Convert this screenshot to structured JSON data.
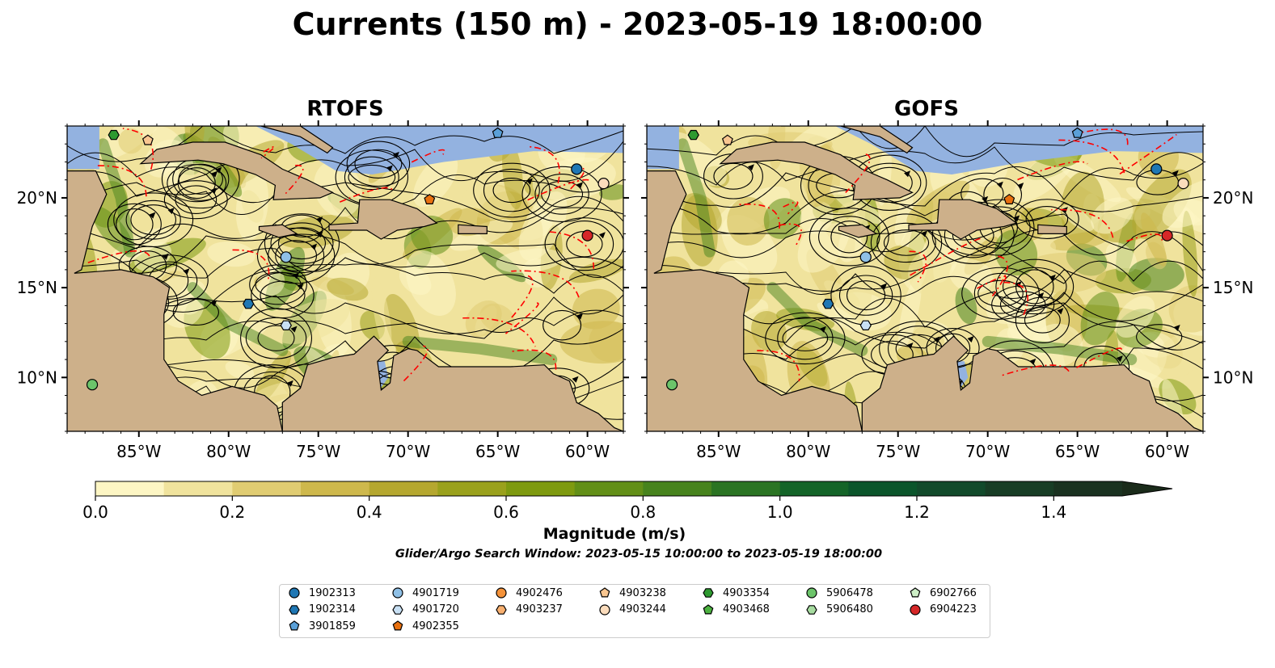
{
  "title": "Currents (150 m) - 2023-05-19 18:00:00",
  "panels": [
    {
      "title": "RTOFS"
    },
    {
      "title": "GOFS"
    }
  ],
  "map": {
    "lon_range": [
      -89,
      -58
    ],
    "lat_range": [
      7,
      24
    ],
    "lon_ticks": [
      "85°W",
      "80°W",
      "75°W",
      "70°W",
      "65°W",
      "60°W"
    ],
    "lat_ticks": [
      "20°N",
      "15°N",
      "10°N"
    ],
    "colors": {
      "land": "#cdb08a",
      "water": "#93b2e0",
      "eez_line": "#ff0000",
      "streamline": "#000000"
    }
  },
  "colorbar": {
    "label": "Magnitude (m/s)",
    "range": [
      0.0,
      1.5
    ],
    "extend": "max",
    "ticks": [
      "0.0",
      "0.2",
      "0.4",
      "0.6",
      "0.8",
      "1.0",
      "1.2",
      "1.4"
    ],
    "bin_colors": [
      "#fdf6c4",
      "#f0e39d",
      "#e0cc72",
      "#ceb84c",
      "#b5a72f",
      "#9aa11c",
      "#7e9a10",
      "#628f17",
      "#47831d",
      "#2b7423",
      "#146428",
      "#0b552b",
      "#124a2b",
      "#183d25",
      "#1a3220"
    ]
  },
  "search_window": "Glider/Argo Search Window: 2023-05-15 10:00:00 to 2023-05-19 18:00:00",
  "legend": [
    {
      "id": "1902313",
      "marker": "circle",
      "color": "#1f77b4"
    },
    {
      "id": "1902314",
      "marker": "hexagon",
      "color": "#1f77b4"
    },
    {
      "id": "3901859",
      "marker": "pentagon",
      "color": "#5aa0d8"
    },
    {
      "id": "4901719",
      "marker": "circle",
      "color": "#8fc0e6"
    },
    {
      "id": "4901720",
      "marker": "hexagon",
      "color": "#c8e0f4"
    },
    {
      "id": "4902355",
      "marker": "pentagon",
      "color": "#e8700f"
    },
    {
      "id": "4902476",
      "marker": "circle",
      "color": "#f4923a"
    },
    {
      "id": "4903237",
      "marker": "hexagon",
      "color": "#f8b070"
    },
    {
      "id": "4903238",
      "marker": "pentagon",
      "color": "#f9c690"
    },
    {
      "id": "4903244",
      "marker": "circle",
      "color": "#fbdcbc"
    },
    {
      "id": "4903354",
      "marker": "hexagon",
      "color": "#2e9a30"
    },
    {
      "id": "4903468",
      "marker": "pentagon",
      "color": "#4cb240"
    },
    {
      "id": "5906478",
      "marker": "circle",
      "color": "#6cc46a"
    },
    {
      "id": "5906480",
      "marker": "hexagon",
      "color": "#a7dca0"
    },
    {
      "id": "6902766",
      "marker": "pentagon",
      "color": "#cdeec6"
    },
    {
      "id": "6904223",
      "marker": "circle",
      "color": "#d62728"
    }
  ],
  "platform_positions": [
    {
      "id": "1902313",
      "lon": -60.6,
      "lat": 21.6
    },
    {
      "id": "3901859",
      "lon": -65.0,
      "lat": 23.6
    },
    {
      "id": "4901719",
      "lon": -76.8,
      "lat": 16.7
    },
    {
      "id": "1902314",
      "lon": -78.9,
      "lat": 14.1
    },
    {
      "id": "4901720",
      "lon": -76.8,
      "lat": 12.9
    },
    {
      "id": "4902355",
      "lon": -68.8,
      "lat": 19.9
    },
    {
      "id": "4903244",
      "lon": -59.1,
      "lat": 20.8
    },
    {
      "id": "6904223",
      "lon": -60.0,
      "lat": 17.9
    },
    {
      "id": "4903354",
      "lon": -86.4,
      "lat": 23.5
    },
    {
      "id": "4903238",
      "lon": -84.5,
      "lat": 23.2
    },
    {
      "id": "5906478",
      "lon": -87.6,
      "lat": 9.6
    }
  ]
}
